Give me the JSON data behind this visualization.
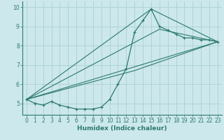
{
  "xlabel": "Humidex (Indice chaleur)",
  "bg_color": "#cce8ec",
  "grid_color": "#aacfd4",
  "line_color": "#2d7a6e",
  "xlim": [
    -0.5,
    23.5
  ],
  "ylim": [
    4.4,
    10.3
  ],
  "yticks": [
    5,
    6,
    7,
    8,
    9,
    10
  ],
  "xticks": [
    0,
    1,
    2,
    3,
    4,
    5,
    6,
    7,
    8,
    9,
    10,
    11,
    12,
    13,
    14,
    15,
    16,
    17,
    18,
    19,
    20,
    21,
    22,
    23
  ],
  "line1_x": [
    0,
    1,
    2,
    3,
    4,
    5,
    6,
    7,
    8,
    9,
    10,
    11,
    12,
    13,
    14,
    15,
    16,
    17,
    18,
    19,
    20,
    21,
    22,
    23
  ],
  "line1_y": [
    5.2,
    5.0,
    4.9,
    5.1,
    4.9,
    4.8,
    4.7,
    4.7,
    4.7,
    4.8,
    5.2,
    6.0,
    6.8,
    8.7,
    9.3,
    9.9,
    9.0,
    8.8,
    8.6,
    8.4,
    8.4,
    8.3,
    8.3,
    8.2
  ],
  "line2_x": [
    0,
    23
  ],
  "line2_y": [
    5.2,
    8.2
  ],
  "line3_x": [
    0,
    13,
    23
  ],
  "line3_y": [
    5.2,
    6.7,
    8.2
  ],
  "line4_x": [
    0,
    16,
    23
  ],
  "line4_y": [
    5.2,
    8.85,
    8.2
  ],
  "line5_x": [
    0,
    15,
    23
  ],
  "line5_y": [
    5.2,
    9.9,
    8.2
  ]
}
